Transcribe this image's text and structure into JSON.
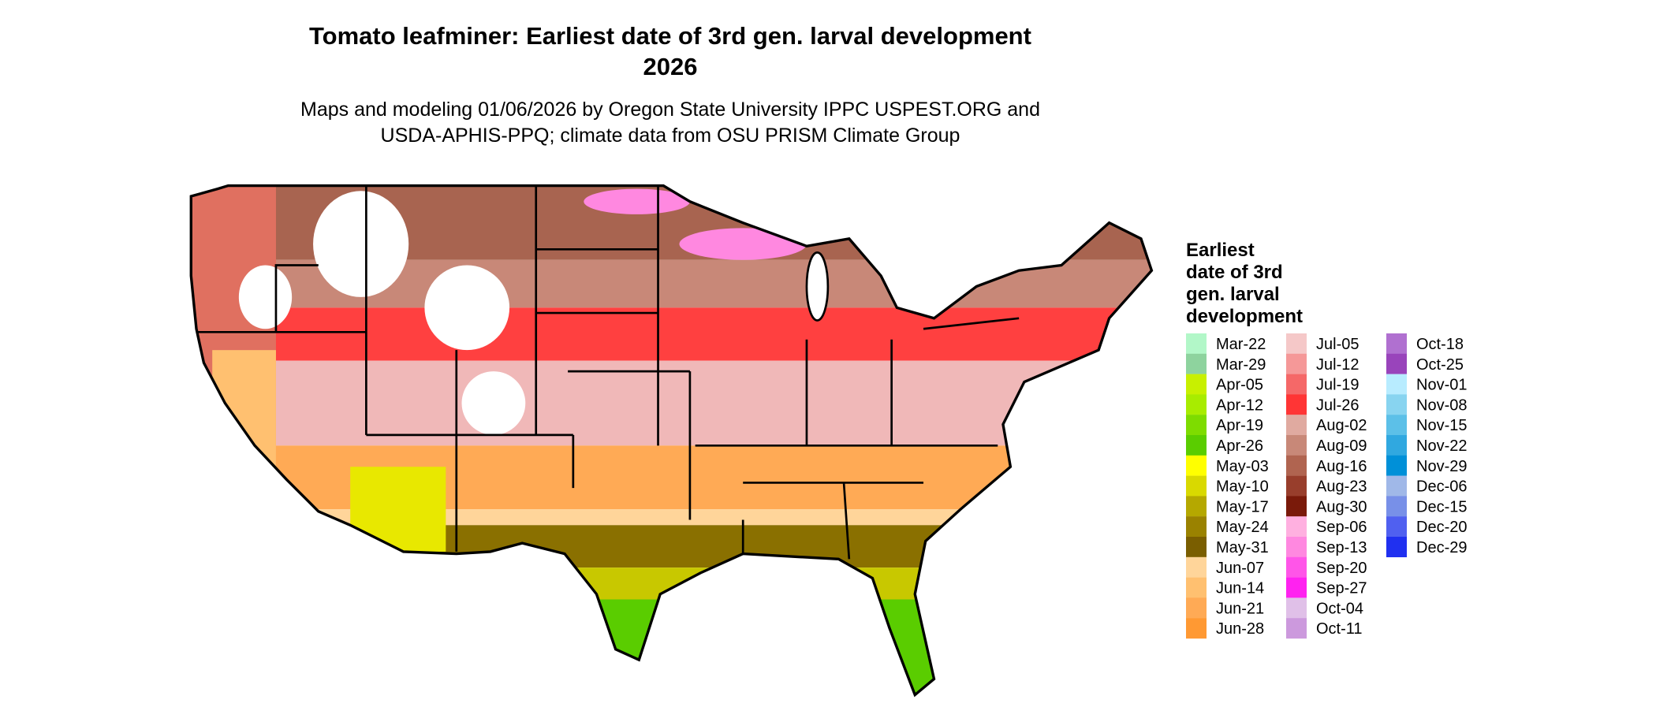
{
  "title": [
    "Tomato leafminer: Earliest date of 3rd gen. larval development",
    "2026"
  ],
  "subtitle": [
    "Maps and modeling 01/06/2026 by Oregon State University IPPC USPEST.ORG and",
    "USDA-APHIS-PPQ; climate data from OSU PRISM Climate Group"
  ],
  "legend": {
    "title": [
      "Earliest",
      "date of 3rd",
      "gen. larval",
      "development"
    ],
    "items": [
      {
        "label": "Mar-22",
        "color": "#b2f7c8"
      },
      {
        "label": "Mar-29",
        "color": "#8ed39e"
      },
      {
        "label": "Apr-05",
        "color": "#c8f000"
      },
      {
        "label": "Apr-12",
        "color": "#a8ec00"
      },
      {
        "label": "Apr-19",
        "color": "#7edc00"
      },
      {
        "label": "Apr-26",
        "color": "#5acd00"
      },
      {
        "label": "May-03",
        "color": "#ffff00"
      },
      {
        "label": "May-10",
        "color": "#d9d900"
      },
      {
        "label": "May-17",
        "color": "#b5a800"
      },
      {
        "label": "May-24",
        "color": "#9a8200"
      },
      {
        "label": "May-31",
        "color": "#7a5e00"
      },
      {
        "label": "Jun-07",
        "color": "#ffd59a"
      },
      {
        "label": "Jun-14",
        "color": "#ffc070"
      },
      {
        "label": "Jun-21",
        "color": "#ffaa55"
      },
      {
        "label": "Jun-28",
        "color": "#ff9933"
      },
      {
        "label": "Jul-05",
        "color": "#f5c8c8"
      },
      {
        "label": "Jul-12",
        "color": "#f59898"
      },
      {
        "label": "Jul-19",
        "color": "#f56868"
      },
      {
        "label": "Jul-26",
        "color": "#ff3535"
      },
      {
        "label": "Aug-02",
        "color": "#e0aaa0"
      },
      {
        "label": "Aug-09",
        "color": "#c88878"
      },
      {
        "label": "Aug-16",
        "color": "#b06450"
      },
      {
        "label": "Aug-23",
        "color": "#983e2c"
      },
      {
        "label": "Aug-30",
        "color": "#7a1a0a"
      },
      {
        "label": "Sep-06",
        "color": "#ffb0e0"
      },
      {
        "label": "Sep-13",
        "color": "#ff88e0"
      },
      {
        "label": "Sep-20",
        "color": "#ff55e8"
      },
      {
        "label": "Sep-27",
        "color": "#ff22f0"
      },
      {
        "label": "Oct-04",
        "color": "#e0c0e8"
      },
      {
        "label": "Oct-11",
        "color": "#cc99dd"
      },
      {
        "label": "Oct-18",
        "color": "#b070d0"
      },
      {
        "label": "Oct-25",
        "color": "#9944bb"
      },
      {
        "label": "Nov-01",
        "color": "#b8ecff"
      },
      {
        "label": "Nov-08",
        "color": "#88d4f0"
      },
      {
        "label": "Nov-15",
        "color": "#5cc0e8"
      },
      {
        "label": "Nov-22",
        "color": "#30a8e0"
      },
      {
        "label": "Nov-29",
        "color": "#0090d8"
      },
      {
        "label": "Dec-06",
        "color": "#a0b8e8"
      },
      {
        "label": "Dec-15",
        "color": "#7890e8"
      },
      {
        "label": "Dec-20",
        "color": "#5060f0"
      },
      {
        "label": "Dec-29",
        "color": "#2030f0"
      }
    ]
  }
}
